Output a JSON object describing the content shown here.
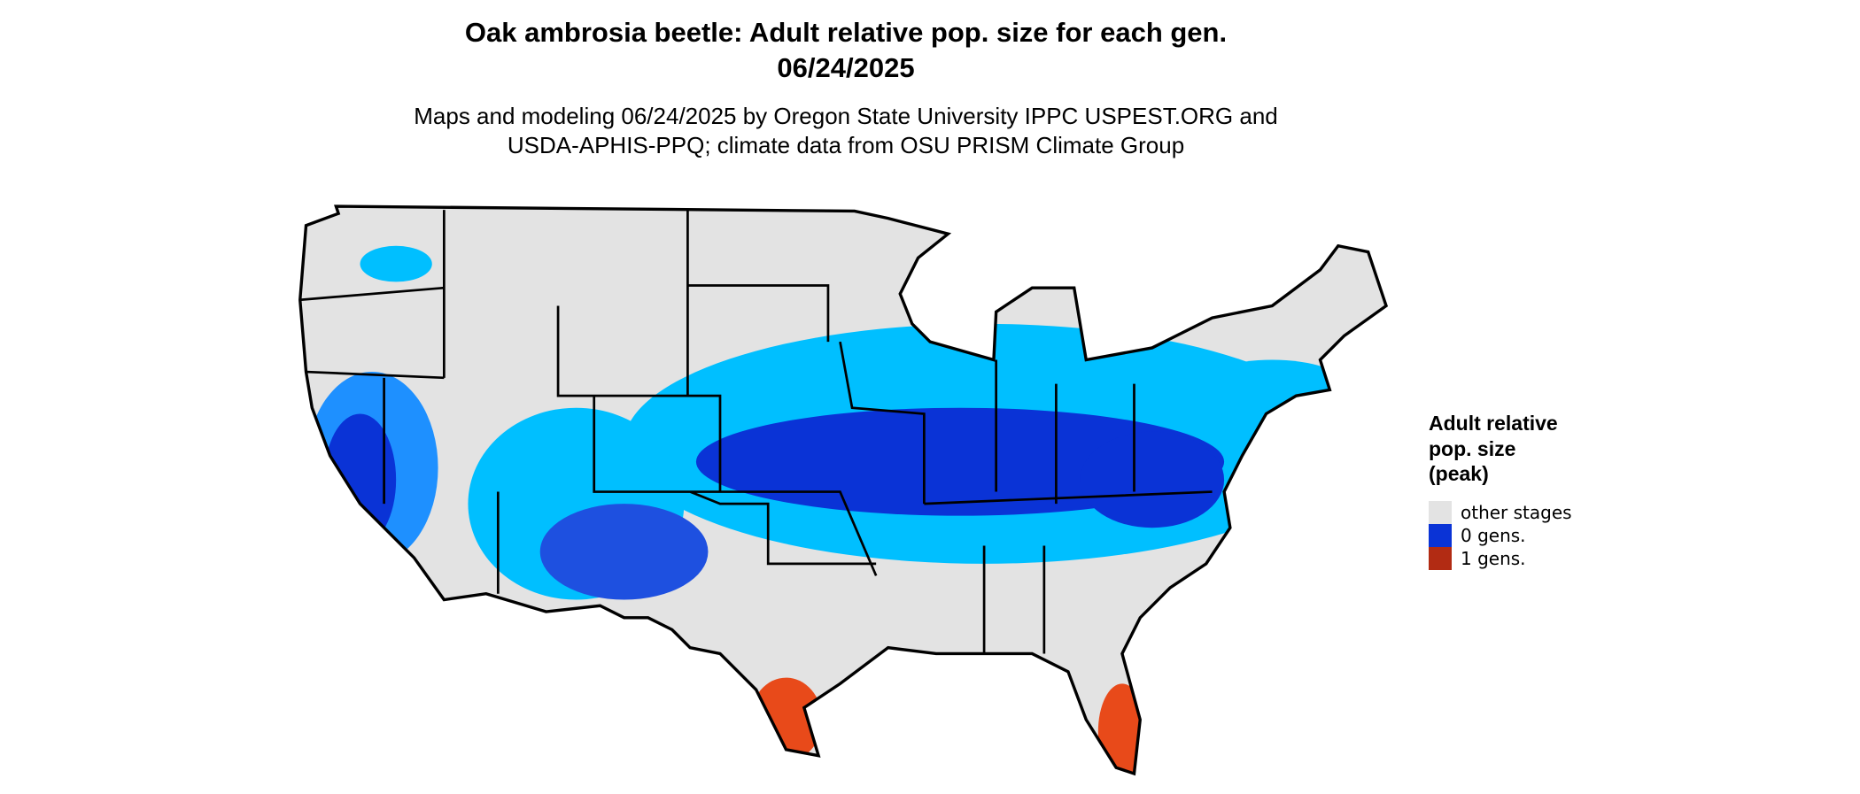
{
  "header": {
    "title_lines": [
      "Oak ambrosia beetle: Adult relative pop. size for each gen.",
      "06/24/2025"
    ],
    "subtitle_lines": [
      "Maps and modeling 06/24/2025 by Oregon State University IPPC USPEST.ORG and",
      "USDA-APHIS-PPQ; climate data from OSU PRISM Climate Group"
    ]
  },
  "legend": {
    "title_lines": [
      "Adult relative",
      "pop. size",
      "(peak)"
    ],
    "items": [
      {
        "label": "other stages",
        "color": "#e3e3e3"
      },
      {
        "label": "0 gens.",
        "color": "#0a33d6"
      },
      {
        "label": "1 gens.",
        "color": "#b22b13"
      }
    ]
  }
}
